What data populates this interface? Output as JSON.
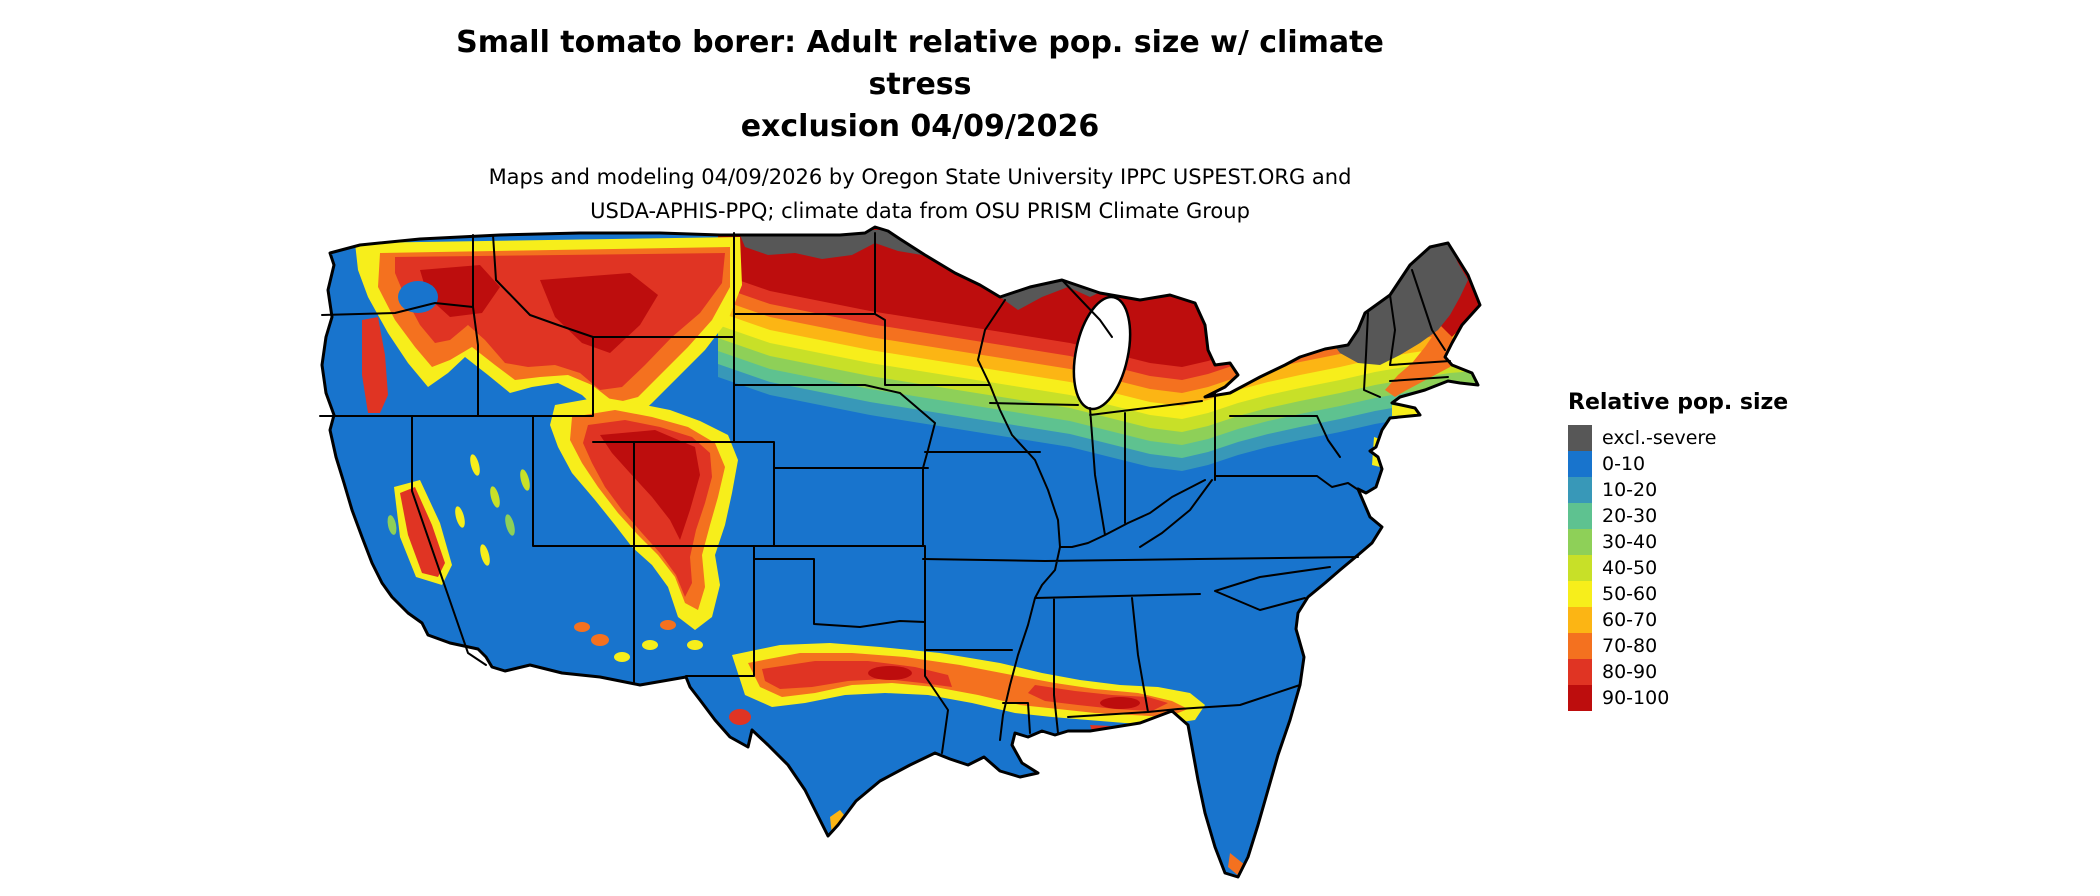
{
  "header": {
    "title_lines": [
      "Small tomato borer: Adult relative pop. size w/ climate stress",
      "exclusion 04/09/2026"
    ],
    "subtitle_lines": [
      "Maps and modeling 04/09/2026 by Oregon State University IPPC USPEST.ORG and",
      "USDA-APHIS-PPQ; climate data from OSU PRISM Climate Group"
    ]
  },
  "legend": {
    "title": "Relative pop. size",
    "items": [
      {
        "label": "excl.-severe",
        "color": "#575757"
      },
      {
        "label": "0-10",
        "color": "#1874cd"
      },
      {
        "label": "10-20",
        "color": "#3898b8"
      },
      {
        "label": "20-30",
        "color": "#5ec290"
      },
      {
        "label": "30-40",
        "color": "#8ed058"
      },
      {
        "label": "40-50",
        "color": "#c8e028"
      },
      {
        "label": "50-60",
        "color": "#f7ee1b"
      },
      {
        "label": "60-70",
        "color": "#fcb514"
      },
      {
        "label": "70-80",
        "color": "#f4711f"
      },
      {
        "label": "80-90",
        "color": "#e03423"
      },
      {
        "label": "90-100",
        "color": "#bd0d0d"
      }
    ]
  }
}
